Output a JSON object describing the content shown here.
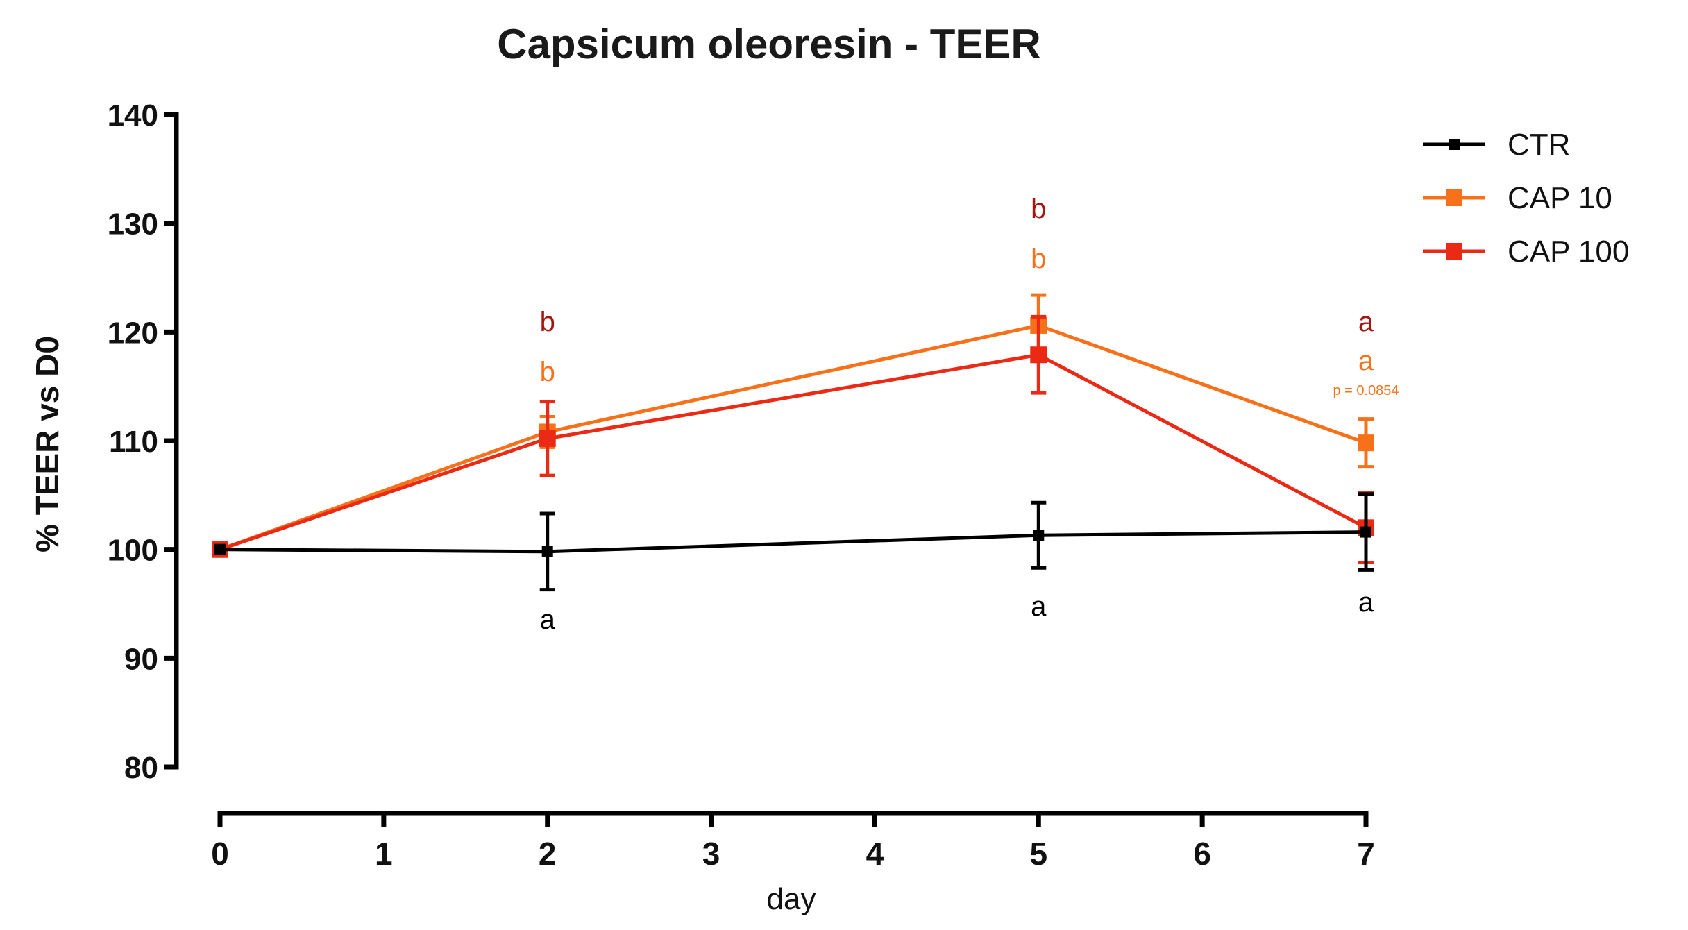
{
  "chart_data": {
    "type": "line",
    "title": "Capsicum oleoresin -  TEER",
    "xlabel": "day",
    "ylabel": "% TEER vs D0",
    "xlim": [
      0,
      7
    ],
    "ylim": [
      80,
      140
    ],
    "x_ticks": [
      "0",
      "1",
      "2",
      "3",
      "4",
      "5",
      "6",
      "7"
    ],
    "y_ticks": [
      "80",
      "90",
      "100",
      "110",
      "120",
      "130",
      "140"
    ],
    "legend_position": "top-right",
    "series": [
      {
        "name": "CTR",
        "color": "#000000",
        "x": [
          0,
          2,
          5,
          7
        ],
        "y": [
          100,
          99.8,
          101.3,
          101.6
        ],
        "error": [
          0,
          3.5,
          3.0,
          3.5
        ]
      },
      {
        "name": "CAP 10",
        "color": "#f7711a",
        "x": [
          0,
          2,
          5,
          7
        ],
        "y": [
          100,
          110.8,
          120.6,
          109.8
        ],
        "error": [
          0,
          1.4,
          2.8,
          2.2
        ]
      },
      {
        "name": "CAP 100",
        "color": "#ea2a15",
        "x": [
          0,
          2,
          5,
          7
        ],
        "y": [
          100,
          110.2,
          117.9,
          102.0
        ],
        "error": [
          0,
          3.4,
          3.5,
          3.2
        ]
      }
    ],
    "annotations": [
      {
        "text": "b",
        "x": 2,
        "y": 120.1,
        "color": "#a31510",
        "size": "normal"
      },
      {
        "text": "b",
        "x": 2,
        "y": 115.5,
        "color": "#f7711a",
        "size": "normal"
      },
      {
        "text": "a",
        "x": 2,
        "y": 92.7,
        "color": "#000000",
        "size": "normal"
      },
      {
        "text": "b",
        "x": 5,
        "y": 130.5,
        "color": "#a31510",
        "size": "normal"
      },
      {
        "text": "b",
        "x": 5,
        "y": 125.9,
        "color": "#f7711a",
        "size": "normal"
      },
      {
        "text": "a",
        "x": 5,
        "y": 93.9,
        "color": "#000000",
        "size": "normal"
      },
      {
        "text": "a",
        "x": 7,
        "y": 120.1,
        "color": "#a31510",
        "size": "normal"
      },
      {
        "text": "a",
        "x": 7,
        "y": 116.5,
        "color": "#f7711a",
        "size": "normal"
      },
      {
        "text": "p = 0.0854",
        "x": 7,
        "y": 114.2,
        "color": "#f7711a",
        "size": "small"
      },
      {
        "text": "a",
        "x": 7,
        "y": 94.3,
        "color": "#000000",
        "size": "normal"
      }
    ]
  }
}
